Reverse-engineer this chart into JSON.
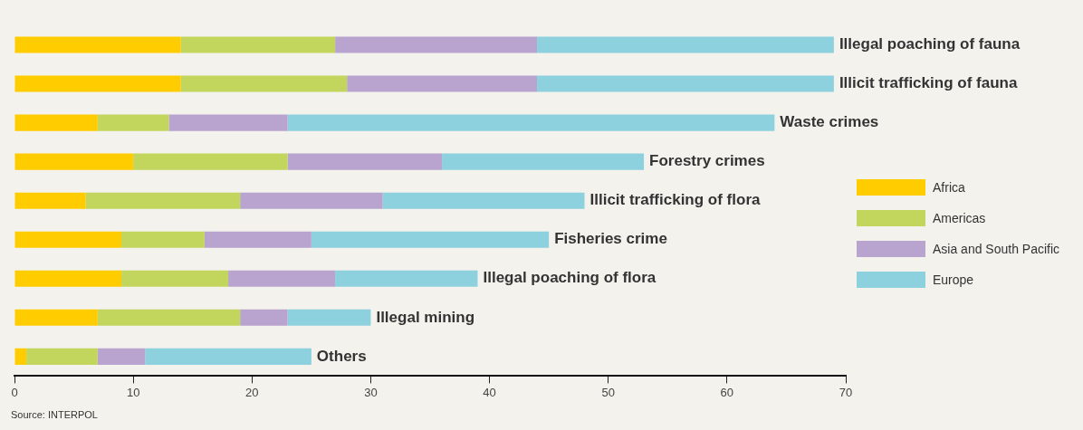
{
  "chart_data": {
    "type": "bar",
    "orientation": "horizontal",
    "stacked": true,
    "categories": [
      "Illegal poaching of fauna",
      "Illicit trafficking of fauna",
      "Waste crimes",
      "Forestry crimes",
      "Illicit trafficking of flora",
      "Fisheries crime",
      "Illegal poaching of flora",
      "Illegal mining",
      "Others"
    ],
    "series": [
      {
        "name": "Africa",
        "color": "#ffcc00",
        "values": [
          14,
          14,
          7,
          10,
          6,
          9,
          9,
          7,
          1
        ]
      },
      {
        "name": "Americas",
        "color": "#c2d65e",
        "values": [
          13,
          14,
          6,
          13,
          13,
          7,
          9,
          12,
          6
        ]
      },
      {
        "name": "Asia and South Pacific",
        "color": "#b9a3cf",
        "values": [
          17,
          16,
          10,
          13,
          12,
          9,
          9,
          4,
          4
        ]
      },
      {
        "name": "Europe",
        "color": "#8dd0de",
        "values": [
          25,
          25,
          41,
          17,
          17,
          20,
          12,
          7,
          14
        ]
      }
    ],
    "xlim": [
      0,
      70
    ],
    "xticks": [
      0,
      10,
      20,
      30,
      40,
      50,
      60,
      70
    ],
    "grid": false,
    "legend": "right",
    "tick_labels": "x",
    "annotations": [
      "Source: INTERPOL"
    ]
  }
}
